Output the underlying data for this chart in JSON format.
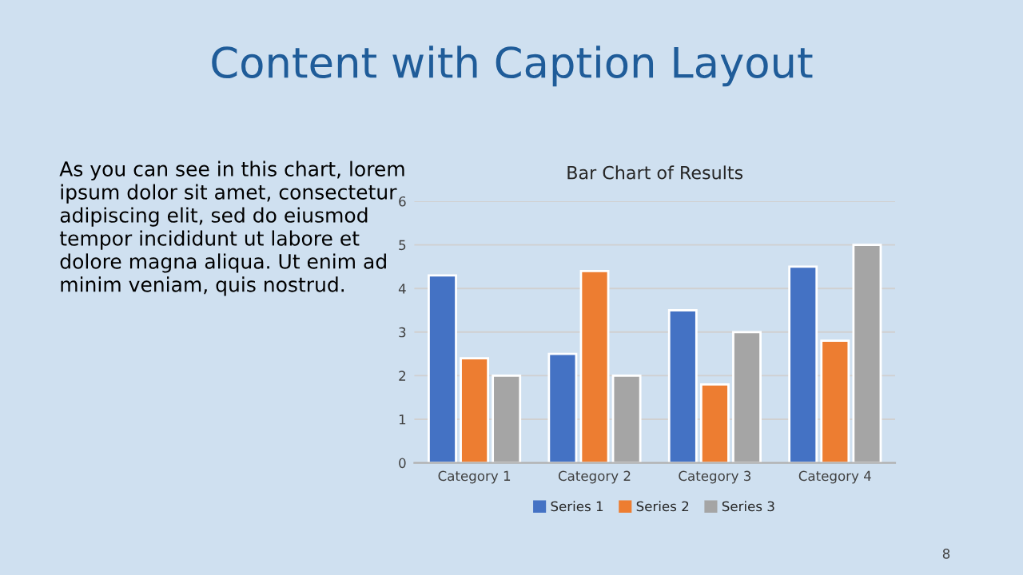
{
  "chart_data": {
    "type": "bar",
    "title": "Content with Caption Layout",
    "subtitle": "Bar Chart of Results",
    "categories": [
      "Category 1",
      "Category 2",
      "Category 3",
      "Category 4"
    ],
    "series": [
      {
        "name": "Series 1",
        "color": "#4472c4",
        "values": [
          4.3,
          2.5,
          3.5,
          4.5
        ]
      },
      {
        "name": "Series 2",
        "color": "#ed7d31",
        "values": [
          2.4,
          4.4,
          1.8,
          2.8
        ]
      },
      {
        "name": "Series 3",
        "color": "#a5a5a5",
        "values": [
          2,
          2,
          3,
          5
        ]
      }
    ],
    "ylim": [
      0,
      6
    ],
    "yticks": [
      0,
      1,
      2,
      3,
      4,
      5,
      6
    ],
    "grid": "y",
    "legend": "bottom",
    "annotations": [
      "As you can see in this chart, lorem\nipsum dolor sit amet, consectetur\nadipiscing elit, sed do eiusmod\ntempor incididunt ut labore et\ndolore magna aliqua. Ut enim ad\nminim veniam, quis nostrud.",
      "8"
    ]
  }
}
